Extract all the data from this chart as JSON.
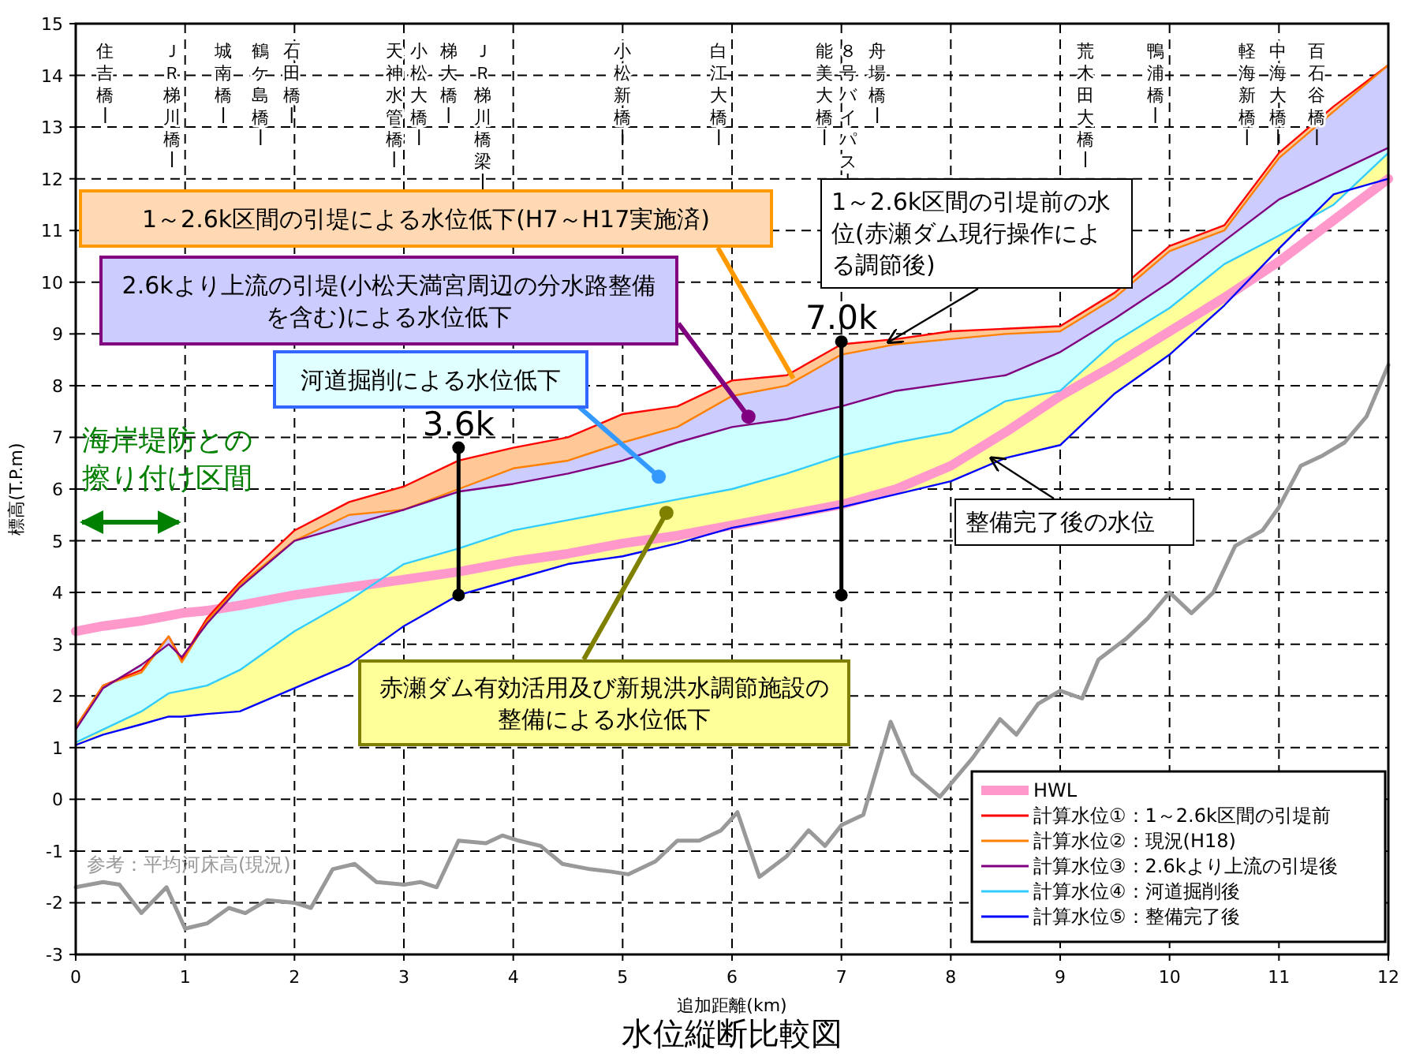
{
  "chart_data": {
    "type": "line",
    "title": "水位縦断比較図",
    "xlabel": "追加距離(km)",
    "ylabel": "標高(T.P.m)",
    "xlim": [
      0,
      12
    ],
    "ylim": [
      -3,
      15
    ],
    "xticks": [
      0,
      1,
      2,
      3,
      4,
      5,
      6,
      7,
      8,
      9,
      10,
      11,
      12
    ],
    "yticks": [
      -3,
      -2,
      -1,
      0,
      1,
      2,
      3,
      4,
      5,
      6,
      7,
      8,
      9,
      10,
      11,
      12,
      13,
      14,
      15
    ],
    "grid": true,
    "legend": "bottom right",
    "marker": "none",
    "line_style": "solid",
    "x": [
      0,
      0.25,
      0.6,
      0.85,
      0.97,
      1.2,
      1.5,
      2.0,
      2.5,
      3.0,
      3.5,
      4.0,
      4.5,
      5.0,
      5.5,
      6.0,
      6.5,
      7.0,
      7.5,
      8.0,
      8.5,
      9.0,
      9.5,
      10.0,
      10.5,
      11.0,
      11.5,
      12.0
    ],
    "series": [
      {
        "name": "HWL",
        "color": "#ff99cc",
        "values": [
          3.25,
          3.35,
          3.45,
          3.55,
          3.6,
          3.65,
          3.75,
          3.95,
          4.1,
          4.25,
          4.4,
          4.6,
          4.75,
          4.95,
          5.1,
          5.3,
          5.5,
          5.7,
          6.0,
          6.45,
          7.1,
          7.8,
          8.4,
          9.05,
          9.7,
          10.4,
          11.2,
          12.0
        ]
      },
      {
        "name": "計算水位①：1～2.6k区間の引堤前",
        "color": "#ff0000",
        "values": [
          1.4,
          2.2,
          2.5,
          3.15,
          2.7,
          3.5,
          4.2,
          5.2,
          5.75,
          6.05,
          6.55,
          6.8,
          7.0,
          7.45,
          7.6,
          8.1,
          8.2,
          8.8,
          8.9,
          9.05,
          9.1,
          9.15,
          9.8,
          10.7,
          11.1,
          12.5,
          13.4,
          14.2
        ],
        "upper": [
          1.4,
          2.2,
          2.5,
          3.15,
          2.7,
          3.5,
          4.2,
          5.2,
          5.75,
          6.05,
          6.55,
          6.8,
          7.0,
          7.45,
          7.6,
          8.1,
          8.2,
          8.8,
          8.9,
          9.05,
          9.1,
          9.15,
          9.8,
          10.7,
          11.1,
          12.5,
          13.4,
          14.2
        ],
        "lower": [
          1.4,
          2.2,
          2.45,
          3.15,
          2.65,
          3.45,
          4.15,
          5.0,
          5.5,
          5.6,
          6.0,
          6.4,
          6.55,
          6.9,
          7.2,
          7.8,
          8.0,
          8.6,
          8.8,
          8.9,
          9.0,
          9.05,
          9.7,
          10.6,
          11.0,
          12.4,
          13.3,
          14.2
        ]
      },
      {
        "name": "計算水位②：現況(H18)",
        "color": "#ff8000",
        "values": [
          1.4,
          2.2,
          2.45,
          3.15,
          2.65,
          3.45,
          4.15,
          5.0,
          5.5,
          5.6,
          6.0,
          6.4,
          6.55,
          6.9,
          7.2,
          7.8,
          8.0,
          8.6,
          8.8,
          8.9,
          9.0,
          9.05,
          9.7,
          10.6,
          11.0,
          12.4,
          13.3,
          14.2
        ],
        "upper": [
          1.4,
          2.2,
          2.45,
          3.15,
          2.65,
          3.45,
          4.15,
          5.0,
          5.5,
          5.6,
          6.0,
          6.4,
          6.55,
          6.9,
          7.2,
          7.8,
          8.0,
          8.6,
          8.8,
          8.9,
          9.0,
          9.05,
          9.7,
          10.6,
          11.0,
          12.4,
          13.3,
          14.2
        ],
        "lower": [
          1.35,
          2.15,
          2.6,
          3.0,
          2.75,
          3.4,
          4.1,
          5.0,
          5.3,
          5.6,
          5.95,
          6.1,
          6.3,
          6.55,
          6.9,
          7.2,
          7.35,
          7.6,
          7.9,
          8.05,
          8.2,
          8.65,
          9.3,
          10.0,
          10.8,
          11.6,
          12.1,
          12.6
        ]
      },
      {
        "name": "計算水位③：2.6kより上流の引堤後",
        "color": "#800080",
        "values": [
          1.35,
          2.15,
          2.6,
          3.0,
          2.75,
          3.4,
          4.1,
          5.0,
          5.3,
          5.6,
          5.95,
          6.1,
          6.3,
          6.55,
          6.9,
          7.2,
          7.35,
          7.6,
          7.9,
          8.05,
          8.2,
          8.65,
          9.3,
          10.0,
          10.8,
          11.6,
          12.1,
          12.6
        ],
        "upper": [
          1.35,
          2.15,
          2.6,
          3.0,
          2.75,
          3.4,
          4.1,
          5.0,
          5.3,
          5.6,
          5.95,
          6.1,
          6.3,
          6.55,
          6.9,
          7.2,
          7.35,
          7.6,
          7.9,
          8.05,
          8.2,
          8.65,
          9.3,
          10.0,
          10.8,
          11.6,
          12.1,
          12.6
        ],
        "lower": [
          1.1,
          1.35,
          1.7,
          2.05,
          2.1,
          2.2,
          2.5,
          3.25,
          3.85,
          4.55,
          4.85,
          5.2,
          5.4,
          5.6,
          5.8,
          6.0,
          6.3,
          6.65,
          6.9,
          7.1,
          7.7,
          7.9,
          8.85,
          9.5,
          10.35,
          10.9,
          11.5,
          12.5
        ]
      },
      {
        "name": "計算水位④：河道掘削後",
        "color": "#33ccff",
        "values": [
          1.1,
          1.35,
          1.7,
          2.05,
          2.1,
          2.2,
          2.5,
          3.25,
          3.85,
          4.55,
          4.85,
          5.2,
          5.4,
          5.6,
          5.8,
          6.0,
          6.3,
          6.65,
          6.9,
          7.1,
          7.7,
          7.9,
          8.85,
          9.5,
          10.35,
          10.9,
          11.5,
          12.5
        ],
        "upper": [
          1.1,
          1.35,
          1.7,
          2.05,
          2.1,
          2.2,
          2.5,
          3.25,
          3.85,
          4.55,
          4.85,
          5.2,
          5.4,
          5.6,
          5.8,
          6.0,
          6.3,
          6.65,
          6.9,
          7.1,
          7.7,
          7.9,
          8.85,
          9.5,
          10.35,
          10.9,
          11.5,
          12.5
        ],
        "lower": [
          1.05,
          1.25,
          1.45,
          1.6,
          1.6,
          1.65,
          1.7,
          2.15,
          2.6,
          3.35,
          3.95,
          4.25,
          4.55,
          4.7,
          4.95,
          5.25,
          5.45,
          5.65,
          5.9,
          6.15,
          6.6,
          6.85,
          7.85,
          8.6,
          9.55,
          10.65,
          11.7,
          12.0
        ]
      },
      {
        "name": "計算水位⑤：整備完了後",
        "color": "#0000ff",
        "values": [
          1.05,
          1.25,
          1.45,
          1.6,
          1.6,
          1.65,
          1.7,
          2.15,
          2.6,
          3.35,
          3.95,
          4.25,
          4.55,
          4.7,
          4.95,
          5.25,
          5.45,
          5.65,
          5.9,
          6.15,
          6.6,
          6.85,
          7.85,
          8.6,
          9.55,
          10.65,
          11.7,
          12.0
        ]
      },
      {
        "color": "#999999",
        "x": [
          0,
          0.25,
          0.4,
          0.6,
          0.83,
          1.0,
          1.2,
          1.4,
          1.55,
          1.75,
          2.0,
          2.15,
          2.35,
          2.55,
          2.75,
          3.0,
          3.15,
          3.3,
          3.5,
          3.75,
          3.9,
          4.05,
          4.25,
          4.45,
          4.7,
          4.9,
          5.05,
          5.3,
          5.5,
          5.7,
          5.9,
          6.05,
          6.25,
          6.5,
          6.7,
          6.85,
          7.0,
          7.2,
          7.45,
          7.65,
          7.9,
          8.2,
          8.45,
          8.6,
          8.8,
          9.0,
          9.2,
          9.35,
          9.6,
          9.8,
          10.0,
          10.2,
          10.4,
          10.6,
          10.85,
          11.0,
          11.2,
          11.4,
          11.6,
          11.8,
          12.0
        ],
        "values": [
          -1.7,
          -1.6,
          -1.65,
          -2.2,
          -1.7,
          -2.5,
          -2.4,
          -2.1,
          -2.2,
          -1.95,
          -2.0,
          -2.1,
          -1.35,
          -1.25,
          -1.6,
          -1.65,
          -1.6,
          -1.7,
          -0.8,
          -0.85,
          -0.7,
          -0.8,
          -0.9,
          -1.25,
          -1.35,
          -1.4,
          -1.45,
          -1.2,
          -0.8,
          -0.8,
          -0.6,
          -0.25,
          -1.5,
          -1.1,
          -0.6,
          -0.9,
          -0.5,
          -0.3,
          1.5,
          0.5,
          0.05,
          0.8,
          1.55,
          1.25,
          1.85,
          2.1,
          1.95,
          2.7,
          3.1,
          3.5,
          4.0,
          3.6,
          4.0,
          4.9,
          5.2,
          5.65,
          6.45,
          6.65,
          6.9,
          7.4,
          8.4
        ]
      },
      {
        "color": "#000000",
        "marker": "circle",
        "x": [
          3.5,
          3.5
        ],
        "values": [
          3.95,
          6.8
        ]
      },
      {
        "color": "#000000",
        "marker": "circle",
        "x": [
          7.0,
          7.0
        ],
        "values": [
          3.95,
          8.85
        ]
      }
    ],
    "annotations": [
      "住吉橋",
      "ＪＲ梯川橋",
      "城南橋",
      "鶴ケ島橋",
      "石田橋",
      "天神水管橋",
      "小松大橋",
      "梯大橋",
      "ＪＲ梯川橋梁",
      "小松新橋",
      "白江大橋",
      "能美大橋",
      "８号バイパス",
      "舟場橋",
      "荒木田大橋",
      "鴨浦橋",
      "軽海新橋",
      "中海大橋",
      "百石谷橋",
      "海岸堤防との擦り付け区間",
      "参考：平均河床高(現況)",
      {
        "text": "1～2.6k区間の引堤による水位低下(H7～H17実施済)",
        "x": 6.56,
        "y": 8.14
      },
      {
        "text": "2.6kより上流の引堤(小松天満宮周辺の分水路整備を含む)による水位低下",
        "x": 6.15,
        "y": 7.4
      },
      {
        "text": "河道掘削による水位低下",
        "x": 5.33,
        "y": 6.24
      },
      {
        "text": "赤瀬ダム有効活用及び新規洪水調節施設の整備による水位低下",
        "x": 5.4,
        "y": 5.54
      },
      {
        "text": "1～2.6k区間の引堤前の水位(赤瀬ダム現行操作による調節後)",
        "x": 7.43,
        "y": 8.84
      },
      {
        "text": "整備完了後の水位",
        "x": 8.37,
        "y": 6.6
      },
      {
        "text": "3.6k",
        "x": 3.5,
        "y": 6.8
      },
      {
        "text": "7.0k",
        "x": 7.0,
        "y": 8.85
      }
    ]
  }
}
